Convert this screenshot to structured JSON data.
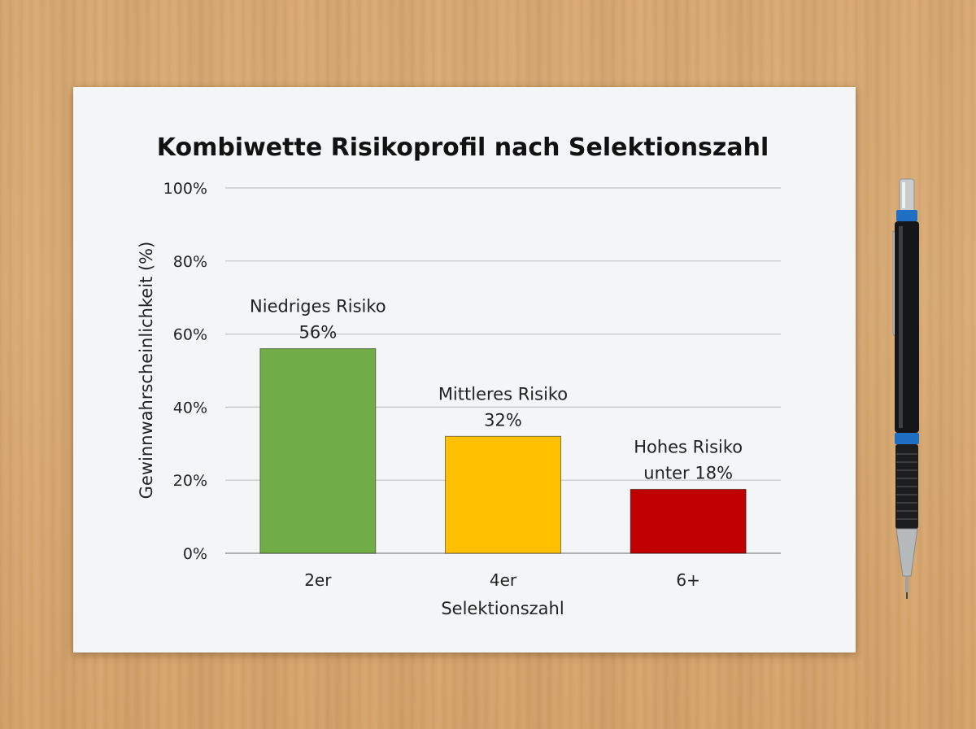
{
  "chart_data": {
    "type": "bar",
    "title": "Kombiwette Risikoprofil nach Selektionszahl",
    "xlabel": "Selektionszahl",
    "ylabel": "Gewinnwahrscheinlichkeit (%)",
    "ylim": [
      0,
      100
    ],
    "yticks": [
      0,
      20,
      40,
      60,
      80,
      100
    ],
    "ytick_labels": [
      "0%",
      "20%",
      "40%",
      "60%",
      "80%",
      "100%"
    ],
    "categories": [
      "2er",
      "4er",
      "6+"
    ],
    "values": [
      56,
      32,
      17.5
    ],
    "colors": [
      "#70ad47",
      "#ffc000",
      "#c00000"
    ],
    "annotations": [
      [
        "Niedriges Risiko",
        "56%"
      ],
      [
        "Mittleres Risiko",
        "32%"
      ],
      [
        "Hohes Risiko",
        "unter 18%"
      ]
    ],
    "grid": true,
    "legend": "none"
  }
}
